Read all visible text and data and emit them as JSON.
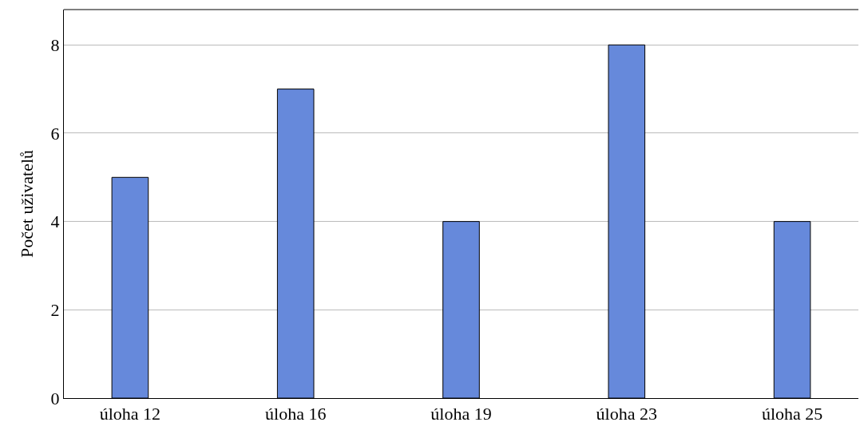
{
  "chart_data": {
    "type": "bar",
    "ylabel": "Počet uživatelů",
    "categories": [
      "úloha 12",
      "úloha 16",
      "úloha 19",
      "úloha 23",
      "úloha 25"
    ],
    "values": [
      5,
      7,
      4,
      8,
      4
    ],
    "color": "#6689db",
    "ylim": [
      0,
      8.8
    ],
    "yticks": [
      0,
      2,
      4,
      6,
      8
    ],
    "grid": "y",
    "legend": false
  }
}
